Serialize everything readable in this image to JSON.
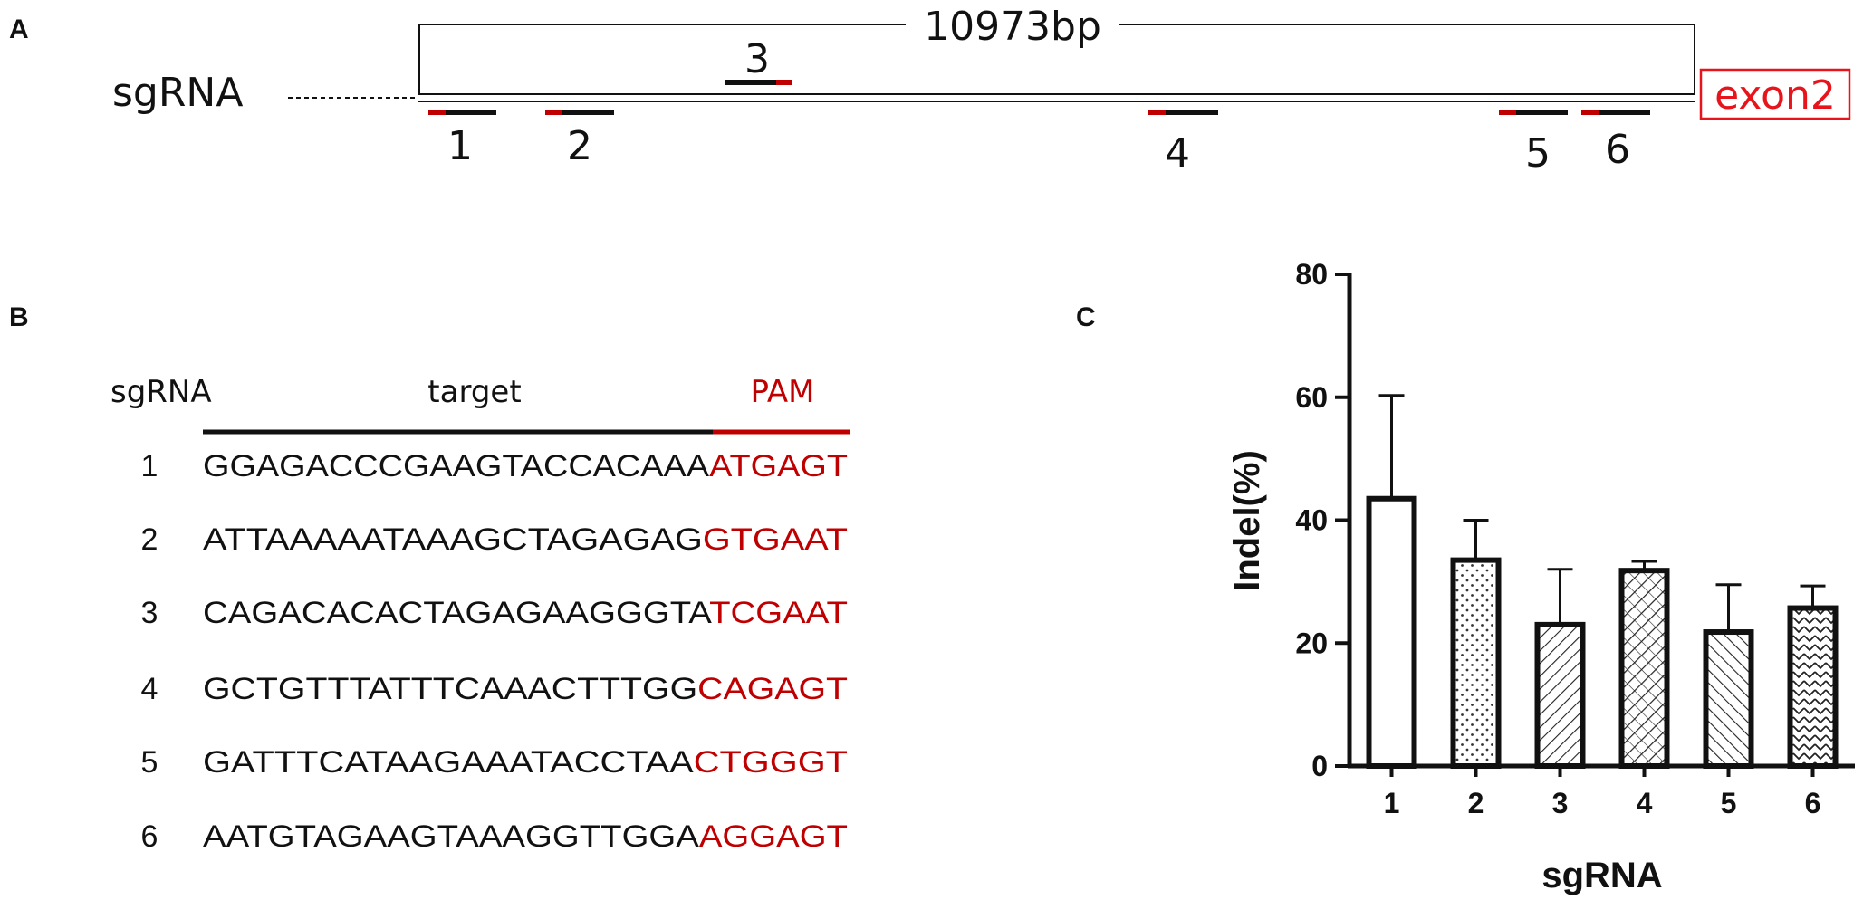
{
  "panels": {
    "a": "A",
    "b": "B",
    "c": "C"
  },
  "colors": {
    "pam": "#c00000",
    "exon": "#e8141c",
    "black": "#111111"
  },
  "panel_a": {
    "row_label": "sgRNA",
    "span_label": "10973bp",
    "exon_label": "exon2",
    "sites": [
      {
        "label": "1",
        "strand": "bottom",
        "pam_side": "left"
      },
      {
        "label": "2",
        "strand": "bottom",
        "pam_side": "left"
      },
      {
        "label": "3",
        "strand": "top",
        "pam_side": "right"
      },
      {
        "label": "4",
        "strand": "bottom",
        "pam_side": "left"
      },
      {
        "label": "5",
        "strand": "bottom",
        "pam_side": "left"
      },
      {
        "label": "6",
        "strand": "bottom",
        "pam_side": "left"
      }
    ]
  },
  "panel_b": {
    "header_sgrna": "sgRNA",
    "header_target": "target",
    "header_pam": "PAM",
    "rows": [
      {
        "id": "1",
        "target": "GGAGACCCGAAGTACCACAAA",
        "pam": "ATGAGT"
      },
      {
        "id": "2",
        "target": "ATTAAAAATAAAGCTAGAGAG",
        "pam": "GTGAAT"
      },
      {
        "id": "3",
        "target": "CAGACACACTAGAGAAGGGTA",
        "pam": "TCGAAT"
      },
      {
        "id": "4",
        "target": "GCTGTTTATTTCAAACTTTGG",
        "pam": "CAGAGT"
      },
      {
        "id": "5",
        "target": "GATTTCATAAGAAATACCTAA",
        "pam": "CTGGGT"
      },
      {
        "id": "6",
        "target": "AATGTAGAAGTAAAGGTTGGA",
        "pam": "AGGAGT"
      }
    ]
  },
  "chart_data": {
    "type": "bar",
    "categories": [
      "1",
      "2",
      "3",
      "4",
      "5",
      "6"
    ],
    "values": [
      43.5,
      33.5,
      23.0,
      31.8,
      21.8,
      25.7
    ],
    "error_upper": [
      60.3,
      40.0,
      32.0,
      33.3,
      29.5,
      29.3
    ],
    "patterns": [
      "none",
      "dots",
      "diagonal-right",
      "crosshatch",
      "diagonal-left",
      "chevron"
    ],
    "xlabel": "sgRNA",
    "ylabel": "Indel(%)",
    "ylim": [
      0,
      80
    ],
    "yticks": [
      0,
      20,
      40,
      60,
      80
    ],
    "grid": false
  }
}
